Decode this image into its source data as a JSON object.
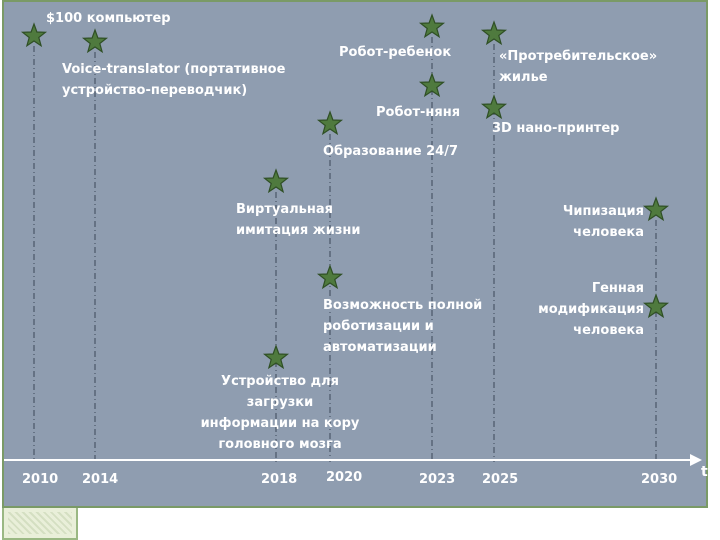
{
  "timeline": {
    "years": [
      "2010",
      "2014",
      "2018",
      "2020",
      "2023",
      "2025",
      "2030"
    ],
    "axis_label": "t"
  },
  "events": [
    {
      "id": "e1",
      "year": "2010",
      "text": "$100 компьютер"
    },
    {
      "id": "e2",
      "year": "2014",
      "text": "Voice-translator (портативное\nустройство-переводчик)"
    },
    {
      "id": "e3",
      "year": "2018",
      "text": "Виртуальная\nимитация жизни"
    },
    {
      "id": "e4",
      "year": "2018",
      "text": "Устройство  для загрузки\nинформации на кору\nголовного мозга"
    },
    {
      "id": "e5",
      "year": "2020",
      "text": "Образование 24/7"
    },
    {
      "id": "e6",
      "year": "2020",
      "text": "Возможность полной\nроботизации и\nавтоматизации"
    },
    {
      "id": "e7",
      "year": "2023",
      "text": "Робот-ребенок"
    },
    {
      "id": "e8",
      "year": "2023",
      "text": "Робот-няня"
    },
    {
      "id": "e9",
      "year": "2025",
      "text": "«Протребительское»\nжилье"
    },
    {
      "id": "e10",
      "year": "2025",
      "text": "3D нано-принтер"
    },
    {
      "id": "e11",
      "year": "2030",
      "text": "Чипизация\nчеловека"
    },
    {
      "id": "e12",
      "year": "2030",
      "text": "Генная\nмодификация\nчеловека"
    }
  ],
  "colors": {
    "background": "#8f9db0",
    "star": "#4f7a3e",
    "star_outline": "#2f4f25",
    "line": "#3b4658",
    "text": "#ffffff",
    "frame": "#7a9a66"
  }
}
